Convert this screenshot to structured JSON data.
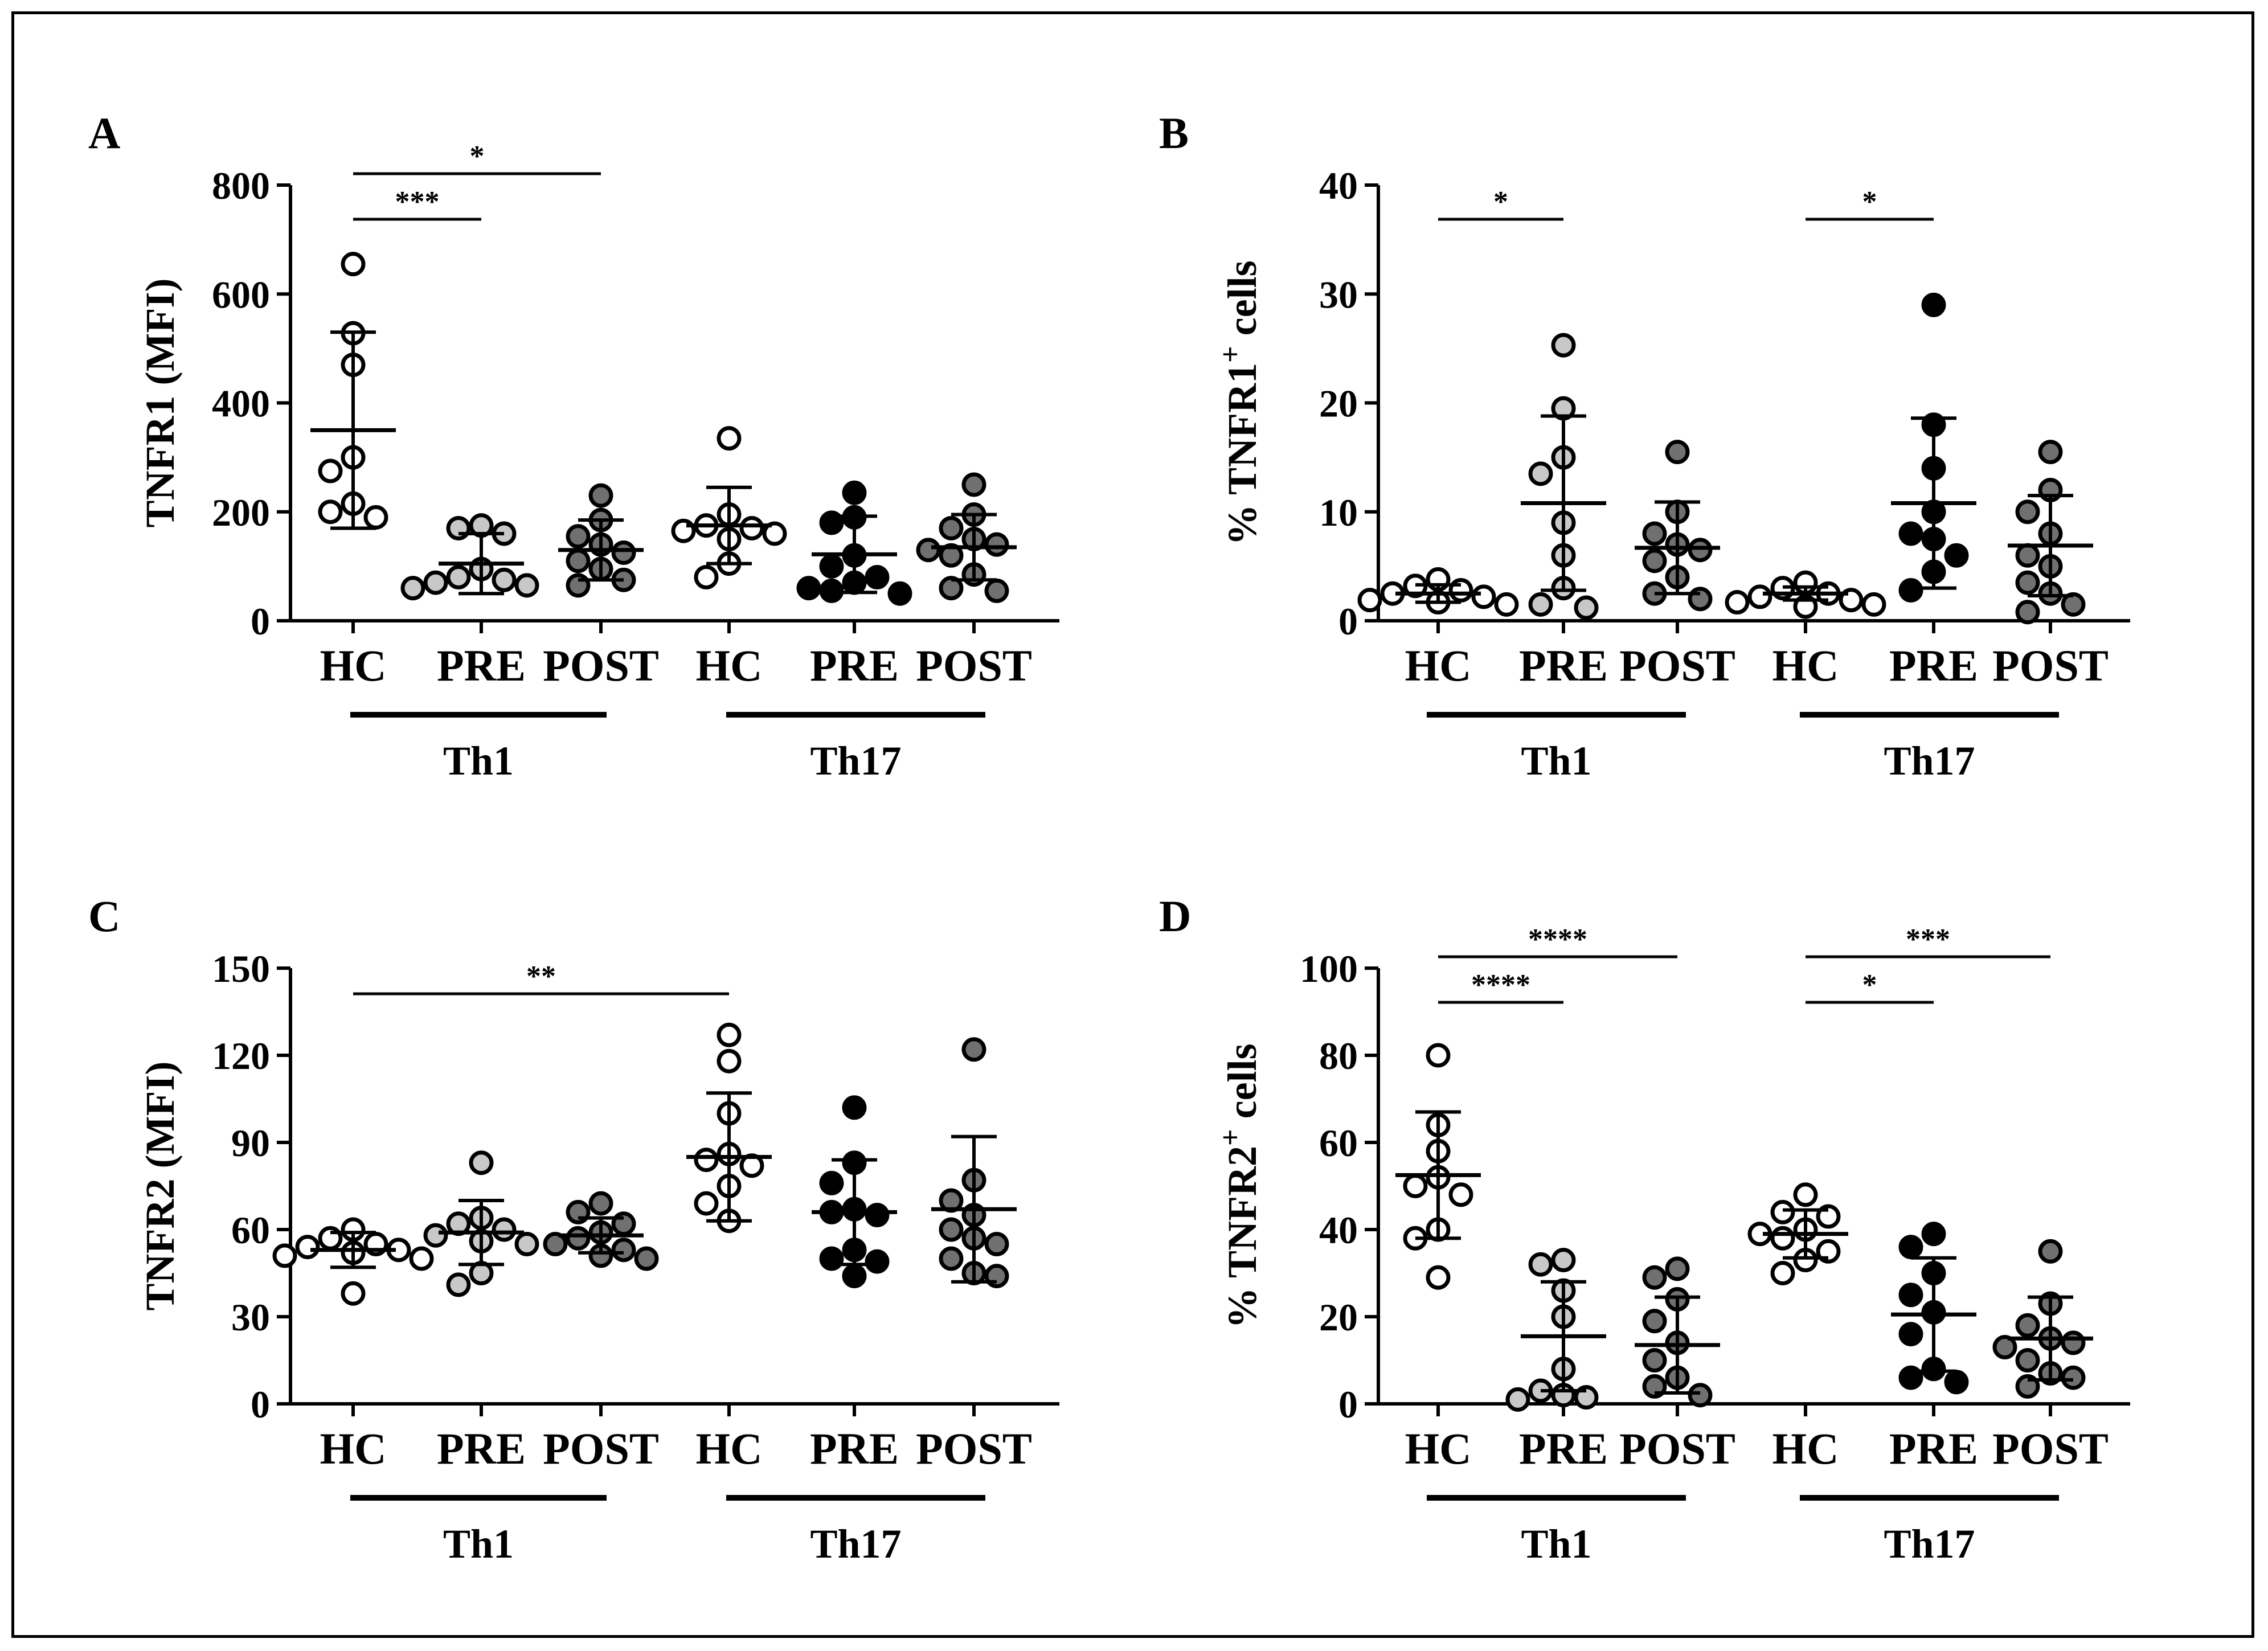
{
  "figure": {
    "groups": [
      "Th1",
      "Th17"
    ],
    "categories": [
      "HC",
      "PRE",
      "POST",
      "HC",
      "PRE",
      "POST"
    ]
  },
  "chart_data": [
    {
      "panel": "A",
      "type": "scatter",
      "ylabel": "TNFR1 (MFI)",
      "ylim": [
        0,
        800
      ],
      "yticks": [
        0,
        200,
        400,
        600,
        800
      ],
      "categories": [
        "HC",
        "PRE",
        "POST",
        "HC",
        "PRE",
        "POST"
      ],
      "groups": [
        "Th1",
        "Th17"
      ],
      "fill_colors": [
        "#ffffff",
        "#c8c8c8",
        "#707070",
        "#ffffff",
        "#000000",
        "#707070"
      ],
      "points": [
        [
          655,
          528,
          470,
          300,
          275,
          215,
          200,
          190
        ],
        [
          175,
          160,
          170,
          95,
          80,
          75,
          70,
          60,
          65
        ],
        [
          230,
          185,
          155,
          140,
          125,
          110,
          95,
          75,
          65
        ],
        [
          335,
          195,
          175,
          170,
          165,
          160,
          150,
          105,
          80
        ],
        [
          235,
          190,
          180,
          120,
          100,
          80,
          70,
          60,
          55,
          50
        ],
        [
          250,
          195,
          170,
          150,
          140,
          130,
          120,
          85,
          60,
          55
        ]
      ],
      "mean": [
        350,
        105,
        130,
        175,
        122,
        135
      ],
      "sd": [
        180,
        55,
        55,
        70,
        70,
        60
      ],
      "significance": [
        {
          "from": 0,
          "to": 1,
          "label": "***"
        },
        {
          "from": 0,
          "to": 2,
          "label": "*"
        }
      ]
    },
    {
      "panel": "B",
      "type": "scatter",
      "ylabel": "% TNFR1",
      "ylabel_sup": "+",
      "ylabel_suffix": " cells",
      "ylim": [
        0,
        40
      ],
      "yticks": [
        0,
        10,
        20,
        30,
        40
      ],
      "categories": [
        "HC",
        "PRE",
        "POST",
        "HC",
        "PRE",
        "POST"
      ],
      "groups": [
        "Th1",
        "Th17"
      ],
      "fill_colors": [
        "#ffffff",
        "#c8c8c8",
        "#707070",
        "#ffffff",
        "#000000",
        "#707070"
      ],
      "points": [
        [
          3.8,
          3.2,
          2.8,
          2.5,
          2.2,
          1.9,
          1.7,
          1.5
        ],
        [
          25.3,
          19.5,
          15,
          13.5,
          9,
          6,
          3,
          1.5,
          1.2
        ],
        [
          15.5,
          10,
          8,
          7,
          6.5,
          5.5,
          4,
          2.5,
          2
        ],
        [
          3.5,
          3,
          2.5,
          2.2,
          1.9,
          1.7,
          1.5,
          1.3
        ],
        [
          29,
          18,
          14,
          10,
          8,
          7.5,
          6,
          4.5,
          2.8
        ],
        [
          15.5,
          12,
          10,
          8,
          6,
          5,
          3.5,
          2.5,
          1.5,
          0.8
        ]
      ],
      "mean": [
        2.5,
        10.8,
        6.7,
        2.5,
        10.8,
        6.9
      ],
      "sd": [
        0.8,
        8,
        4.2,
        0.6,
        7.8,
        4.6
      ],
      "significance": [
        {
          "from": 0,
          "to": 1,
          "label": "*"
        },
        {
          "from": 3,
          "to": 4,
          "label": "*"
        }
      ]
    },
    {
      "panel": "C",
      "type": "scatter",
      "ylabel": "TNFR2 (MFI)",
      "ylim": [
        0,
        150
      ],
      "yticks": [
        0,
        30,
        60,
        90,
        120,
        150
      ],
      "categories": [
        "HC",
        "PRE",
        "POST",
        "HC",
        "PRE",
        "POST"
      ],
      "groups": [
        "Th1",
        "Th17"
      ],
      "fill_colors": [
        "#ffffff",
        "#c8c8c8",
        "#707070",
        "#ffffff",
        "#000000",
        "#707070"
      ],
      "points": [
        [
          60,
          57,
          55,
          54,
          53,
          52,
          51,
          50,
          38
        ],
        [
          83,
          64,
          62,
          60,
          58,
          56,
          55,
          45,
          41
        ],
        [
          69,
          66,
          62,
          59,
          57,
          55,
          53,
          51,
          50
        ],
        [
          127,
          118,
          100,
          86,
          84,
          82,
          75,
          69,
          63
        ],
        [
          102,
          83,
          76,
          67,
          66,
          65,
          53,
          50,
          49,
          44
        ],
        [
          122,
          77,
          70,
          65,
          60,
          57,
          55,
          50,
          45,
          44
        ]
      ],
      "mean": [
        53,
        59,
        58,
        85,
        66,
        67
      ],
      "sd": [
        6,
        11,
        6,
        22,
        18,
        25
      ],
      "significance": [
        {
          "from": 0,
          "to": 3,
          "label": "**"
        }
      ]
    },
    {
      "panel": "D",
      "type": "scatter",
      "ylabel": "% TNFR2",
      "ylabel_sup": "+",
      "ylabel_suffix": " cells",
      "ylim": [
        0,
        100
      ],
      "yticks": [
        0,
        20,
        40,
        60,
        80,
        100
      ],
      "categories": [
        "HC",
        "PRE",
        "POST",
        "HC",
        "PRE",
        "POST"
      ],
      "groups": [
        "Th1",
        "Th17"
      ],
      "fill_colors": [
        "#ffffff",
        "#c8c8c8",
        "#707070",
        "#ffffff",
        "#000000",
        "#707070"
      ],
      "points": [
        [
          80,
          64,
          58,
          52,
          50,
          48,
          40,
          38,
          29
        ],
        [
          33,
          32,
          26,
          20,
          8,
          3,
          2,
          1.5,
          1
        ],
        [
          31,
          29,
          24,
          19,
          14,
          10,
          6,
          4,
          2
        ],
        [
          48,
          44,
          43,
          40,
          39,
          38,
          35,
          33,
          30
        ],
        [
          39,
          36,
          30,
          25,
          21,
          16,
          8,
          6,
          5
        ],
        [
          35,
          23,
          18,
          15,
          14,
          13,
          10,
          7,
          6,
          4
        ]
      ],
      "mean": [
        52.5,
        15.5,
        13.5,
        39,
        20.5,
        15
      ],
      "sd": [
        14.5,
        12.5,
        11,
        5.5,
        13,
        9.5
      ],
      "significance": [
        {
          "from": 0,
          "to": 1,
          "label": "****"
        },
        {
          "from": 0,
          "to": 2,
          "label": "****"
        },
        {
          "from": 3,
          "to": 4,
          "label": "*"
        },
        {
          "from": 3,
          "to": 5,
          "label": "***"
        }
      ]
    }
  ]
}
